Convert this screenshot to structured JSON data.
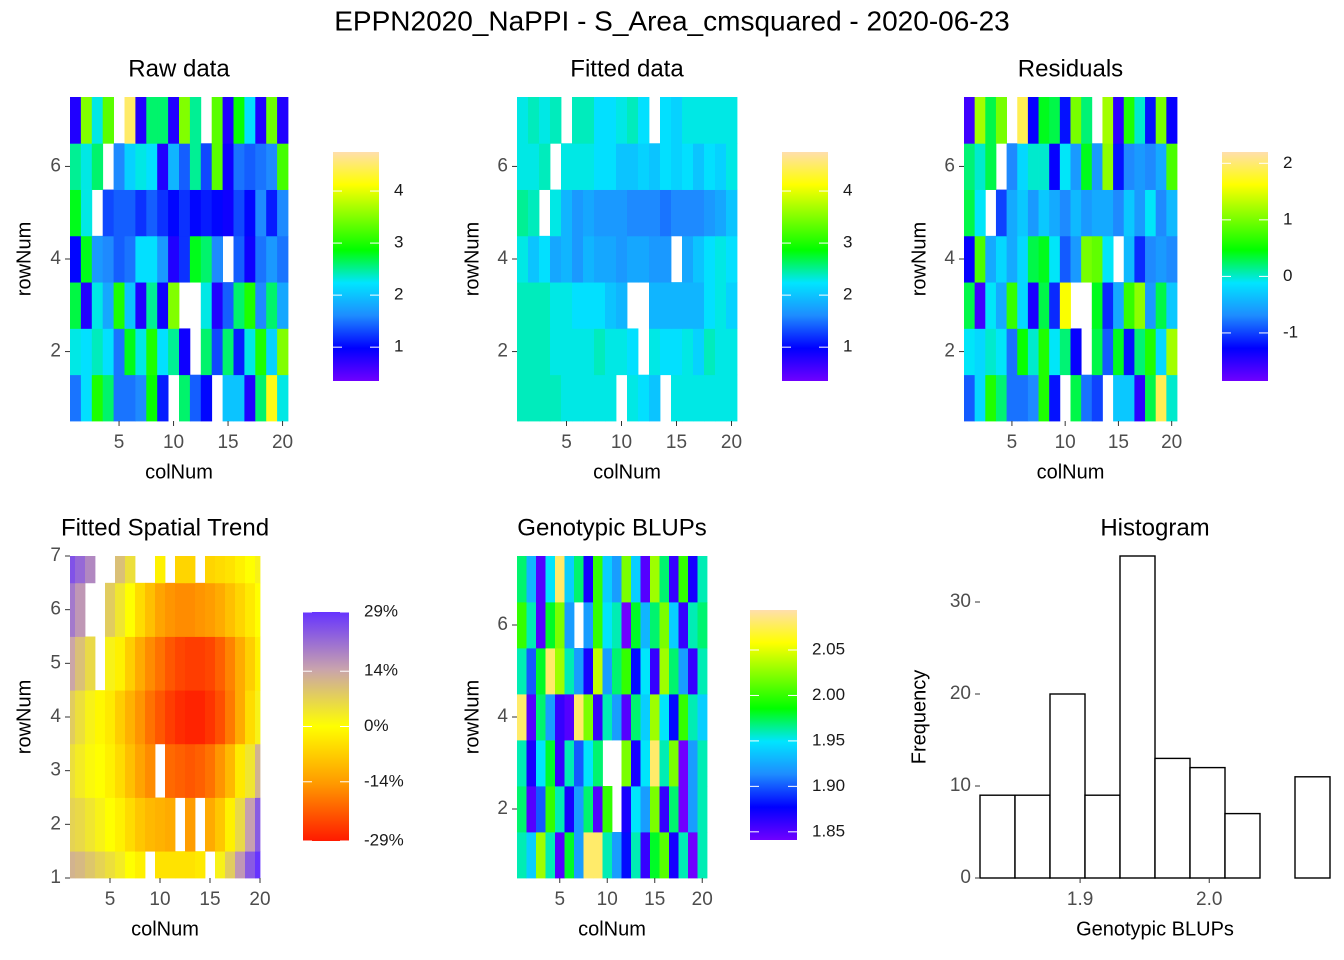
{
  "title": "EPPN2020_NaPPI - S_Area_cmsquared - 2020-06-23",
  "chart_data": [
    {
      "type": "heatmap",
      "title": "Raw data",
      "x_label": "colNum",
      "y_label": "rowNum",
      "x": [
        1,
        2,
        3,
        4,
        5,
        6,
        7,
        8,
        9,
        10,
        11,
        12,
        13,
        14,
        15,
        16,
        17,
        18,
        19,
        20
      ],
      "y": [
        1,
        2,
        3,
        4,
        5,
        6,
        7
      ],
      "xlim": [
        0.5,
        20.5
      ],
      "xticks": [
        5,
        10,
        15,
        20
      ],
      "ylim": [
        0.5,
        7.5
      ],
      "yticks": [
        2,
        4,
        6
      ],
      "z": [
        [
          1.5,
          2.2,
          3.0,
          2.6,
          1.5,
          1.5,
          1.6,
          2.9,
          1.1,
          null,
          2.6,
          1.4,
          1.0,
          null,
          2.0,
          2.0,
          0.8,
          2.6,
          4.2,
          2.3
        ],
        [
          2.3,
          2.2,
          2.4,
          2.2,
          1.5,
          2.8,
          2.3,
          3.0,
          2.2,
          2.5,
          0.9,
          null,
          2.6,
          1.3,
          2.6,
          1.1,
          2.3,
          3.0,
          2.1,
          3.5
        ],
        [
          2.7,
          0.8,
          2.3,
          1.8,
          3.0,
          2.0,
          0.8,
          2.5,
          0.9,
          3.5,
          null,
          null,
          2.3,
          0.8,
          1.4,
          2.6,
          3.0,
          1.6,
          2.6,
          1.8
        ],
        [
          1.0,
          2.8,
          1.7,
          1.6,
          1.4,
          1.5,
          2.2,
          2.2,
          1.7,
          0.8,
          1.2,
          2.8,
          2.6,
          1.6,
          null,
          1.4,
          0.9,
          1.5,
          1.7,
          1.5
        ],
        [
          2.8,
          2.3,
          null,
          1.3,
          1.4,
          1.4,
          1.2,
          1.4,
          1.2,
          1.0,
          1.2,
          1.0,
          1.1,
          1.0,
          0.9,
          1.3,
          1.0,
          1.6,
          1.1,
          1.6
        ],
        [
          2.5,
          2.3,
          2.6,
          null,
          1.6,
          2.1,
          2.3,
          2.2,
          0.8,
          1.9,
          1.4,
          2.5,
          1.3,
          3.3,
          0.9,
          1.5,
          1.4,
          1.5,
          1.6,
          3.2
        ],
        [
          0.8,
          3.5,
          2.3,
          3.3,
          null,
          4.5,
          0.8,
          2.6,
          2.6,
          0.8,
          3.5,
          2.5,
          null,
          3.3,
          0.8,
          2.9,
          2.2,
          0.8,
          3.4,
          0.8
        ]
      ],
      "zlim": [
        0.35,
        4.75
      ],
      "zticks": [
        1,
        2,
        3,
        4
      ],
      "colors": [
        "#7000ff",
        "#0000ff",
        "#1e8cff",
        "#00e5ff",
        "#00ff00",
        "#80ff00",
        "#ffff00",
        "#ffdead"
      ]
    },
    {
      "type": "heatmap",
      "title": "Fitted data",
      "x_label": "colNum",
      "y_label": "rowNum",
      "x": [
        1,
        2,
        3,
        4,
        5,
        6,
        7,
        8,
        9,
        10,
        11,
        12,
        13,
        14,
        15,
        16,
        17,
        18,
        19,
        20
      ],
      "y": [
        1,
        2,
        3,
        4,
        5,
        6,
        7
      ],
      "xlim": [
        0.5,
        20.5
      ],
      "xticks": [
        5,
        10,
        15,
        20
      ],
      "ylim": [
        0.5,
        7.5
      ],
      "yticks": [
        2,
        4,
        6
      ],
      "z": [
        [
          2.4,
          2.4,
          2.4,
          2.4,
          2.3,
          2.3,
          2.3,
          2.3,
          2.3,
          null,
          2.3,
          2.2,
          2.0,
          null,
          2.3,
          2.3,
          2.3,
          2.3,
          2.3,
          2.3
        ],
        [
          2.4,
          2.4,
          2.4,
          2.3,
          2.3,
          2.3,
          2.3,
          2.4,
          2.3,
          2.3,
          2.2,
          null,
          2.3,
          2.2,
          2.2,
          2.3,
          2.1,
          2.4,
          2.3,
          2.3
        ],
        [
          2.4,
          2.4,
          2.4,
          2.3,
          2.3,
          2.2,
          2.2,
          2.2,
          2.0,
          1.9,
          null,
          null,
          1.9,
          1.9,
          1.9,
          1.9,
          1.9,
          2.2,
          2.3,
          2.1
        ],
        [
          2.3,
          2.0,
          2.2,
          1.8,
          1.9,
          1.7,
          1.9,
          1.8,
          1.8,
          1.7,
          1.8,
          1.8,
          1.7,
          1.7,
          null,
          1.8,
          2.0,
          2.2,
          2.3,
          2.2
        ],
        [
          2.5,
          2.4,
          null,
          2.3,
          1.9,
          1.7,
          1.8,
          1.7,
          1.7,
          1.7,
          1.6,
          1.6,
          1.6,
          1.5,
          1.6,
          1.6,
          1.6,
          1.7,
          1.8,
          2.0
        ],
        [
          2.3,
          2.3,
          2.4,
          null,
          2.3,
          2.3,
          2.3,
          2.2,
          2.2,
          2.0,
          2.0,
          2.1,
          2.0,
          2.2,
          2.1,
          2.2,
          2.0,
          2.2,
          2.1,
          2.3
        ],
        [
          2.3,
          2.4,
          2.3,
          2.4,
          null,
          2.4,
          2.4,
          2.2,
          2.2,
          2.3,
          2.4,
          2.2,
          null,
          2.2,
          2.1,
          2.3,
          2.3,
          2.3,
          2.3,
          2.3
        ]
      ],
      "zlim": [
        0.35,
        4.75
      ],
      "zticks": [
        1,
        2,
        3,
        4
      ],
      "colors": [
        "#7000ff",
        "#0000ff",
        "#1e8cff",
        "#00e5ff",
        "#00ff00",
        "#80ff00",
        "#ffff00",
        "#ffdead"
      ]
    },
    {
      "type": "heatmap",
      "title": "Residuals",
      "x_label": "colNum",
      "y_label": "rowNum",
      "x": [
        1,
        2,
        3,
        4,
        5,
        6,
        7,
        8,
        9,
        10,
        11,
        12,
        13,
        14,
        15,
        16,
        17,
        18,
        19,
        20
      ],
      "y": [
        1,
        2,
        3,
        4,
        5,
        6,
        7
      ],
      "xlim": [
        0.5,
        20.5
      ],
      "xticks": [
        5,
        10,
        15,
        20
      ],
      "ylim": [
        0.5,
        7.5
      ],
      "yticks": [
        2,
        4,
        6
      ],
      "z": [
        [
          -0.9,
          -0.2,
          0.6,
          0.2,
          -0.8,
          -0.8,
          -0.7,
          0.6,
          -1.2,
          null,
          0.3,
          -0.8,
          -1.0,
          null,
          -0.3,
          -0.3,
          -1.5,
          0.3,
          1.9,
          0
        ],
        [
          -0.1,
          -0.2,
          0,
          -0.1,
          -0.8,
          0.5,
          0,
          0.6,
          -0.1,
          0.2,
          -1.3,
          null,
          0.3,
          -0.9,
          0.4,
          -1.2,
          0.2,
          0.6,
          -0.2,
          1.2
        ],
        [
          0.3,
          -1.6,
          -0.1,
          -0.5,
          0.7,
          -0.2,
          -1.4,
          0.3,
          -1.1,
          1.6,
          null,
          null,
          0.4,
          -1.1,
          -0.5,
          0.7,
          1.1,
          -0.6,
          0.3,
          -0.3
        ],
        [
          -1.3,
          0.8,
          -0.5,
          -0.2,
          -0.5,
          -0.2,
          0.3,
          0.4,
          -0.1,
          -0.9,
          -0.6,
          1.0,
          0.9,
          -0.1,
          null,
          -0.4,
          -1.1,
          -0.7,
          -0.6,
          -0.7
        ],
        [
          0.3,
          -0.1,
          null,
          -1.0,
          -0.5,
          -0.3,
          -0.6,
          -0.3,
          -0.5,
          -0.7,
          -0.4,
          -0.6,
          -0.5,
          -0.5,
          -0.7,
          -0.3,
          -0.6,
          -0.1,
          -0.7,
          -0.4
        ],
        [
          0.2,
          0,
          0.3,
          null,
          -0.7,
          -0.2,
          0,
          0,
          -1.3,
          -0.1,
          -0.6,
          0.4,
          -0.6,
          1.1,
          -1.2,
          -0.7,
          -0.6,
          -0.7,
          -0.5,
          0.8
        ],
        [
          -1.6,
          1.2,
          0.3,
          1.0,
          null,
          1.9,
          -1.3,
          0.4,
          0.3,
          -1.2,
          1.0,
          0.2,
          null,
          1.2,
          -1.5,
          0.6,
          0,
          -1.2,
          1.0,
          -1.3
        ]
      ],
      "zlim": [
        -1.85,
        2.2
      ],
      "zticks": [
        -1,
        0,
        1,
        2
      ],
      "colors": [
        "#7000ff",
        "#0000ff",
        "#1e8cff",
        "#00e5ff",
        "#00ff00",
        "#80ff00",
        "#ffff00",
        "#ffdead"
      ]
    },
    {
      "type": "heatmap",
      "title": "Fitted Spatial Trend",
      "x_label": "colNum",
      "y_label": "rowNum",
      "x": [
        1,
        2,
        3,
        4,
        5,
        6,
        7,
        8,
        9,
        10,
        11,
        12,
        13,
        14,
        15,
        16,
        17,
        18,
        19,
        20
      ],
      "y": [
        1,
        2,
        3,
        4,
        5,
        6,
        7
      ],
      "xlim": [
        1,
        20
      ],
      "xticks": [
        5,
        10,
        15,
        20
      ],
      "ylim": [
        1,
        7
      ],
      "yticks": [
        1,
        2,
        3,
        4,
        5,
        6,
        7
      ],
      "z": [
        [
          12,
          11,
          9,
          7,
          5,
          3,
          0,
          -2,
          null,
          -4,
          -4,
          -4,
          -4,
          -3,
          null,
          2,
          8,
          16,
          24,
          29
        ],
        [
          7,
          6,
          4,
          2,
          0,
          -2,
          -5,
          -8,
          -10,
          -11,
          -12,
          null,
          -14,
          null,
          -12,
          -8,
          -2,
          6,
          15,
          24
        ],
        [
          5,
          3,
          1,
          0,
          -2,
          -5,
          -9,
          -13,
          -16,
          null,
          -20,
          -21,
          -22,
          -21,
          -19,
          -15,
          -10,
          -3,
          4,
          12
        ],
        [
          8,
          5,
          2,
          -1,
          -3,
          -7,
          -11,
          -15,
          -19,
          -22,
          -25,
          -27,
          -28,
          -28,
          -26,
          -23,
          -18,
          -12,
          -5,
          2
        ],
        [
          14,
          10,
          6,
          null,
          2,
          -2,
          -7,
          -12,
          -16,
          -19,
          -22,
          -24,
          -25,
          -25,
          -24,
          -21,
          -17,
          -12,
          -7,
          -2
        ],
        [
          20,
          16,
          null,
          null,
          8,
          4,
          0,
          -5,
          -9,
          -13,
          -15,
          -16,
          -16,
          -15,
          -14,
          -12,
          -9,
          -6,
          -3,
          0
        ],
        [
          25,
          22,
          18,
          null,
          null,
          10,
          5,
          null,
          null,
          -2,
          null,
          -6,
          -6,
          null,
          -6,
          -5,
          -4,
          -2,
          0,
          2
        ]
      ],
      "zlim": [
        -29,
        29
      ],
      "zticks": [
        {
          "value": -29,
          "label": "-29%"
        },
        {
          "value": -14,
          "label": "-14%"
        },
        {
          "value": 0,
          "label": "0%"
        },
        {
          "value": 14,
          "label": "14%"
        },
        {
          "value": 29,
          "label": "29%"
        }
      ],
      "colors": [
        "#ff1a00",
        "#ff9900",
        "#ffff00",
        "#c9a3ad",
        "#6633ff"
      ]
    },
    {
      "type": "heatmap",
      "title": "Genotypic BLUPs",
      "x_label": "colNum",
      "y_label": "rowNum",
      "x": [
        1,
        2,
        3,
        4,
        5,
        6,
        7,
        8,
        9,
        10,
        11,
        12,
        13,
        14,
        15,
        16,
        17,
        18,
        19,
        20
      ],
      "y": [
        1,
        2,
        3,
        4,
        5,
        6,
        7
      ],
      "xlim": [
        0.5,
        20.5
      ],
      "xticks": [
        5,
        10,
        15,
        20
      ],
      "ylim": [
        0.5,
        7.5
      ],
      "yticks": [
        2,
        4,
        6
      ],
      "z": [
        [
          1.96,
          1.94,
          2.03,
          1.96,
          1.85,
          1.98,
          1.92,
          2.08,
          2.08,
          1.96,
          1.92,
          1.88,
          1.96,
          1.86,
          1.98,
          2.01,
          1.87,
          1.96,
          1.84,
          1.96
        ],
        [
          1.97,
          1.85,
          1.9,
          2.0,
          1.96,
          1.87,
          1.92,
          1.97,
          1.85,
          2.0,
          null,
          1.87,
          1.95,
          1.92,
          2.02,
          1.86,
          1.97,
          1.84,
          1.92,
          1.96
        ],
        [
          1.96,
          1.87,
          1.95,
          1.98,
          1.86,
          1.96,
          1.9,
          1.95,
          1.97,
          null,
          null,
          2.02,
          1.87,
          1.95,
          2.08,
          1.96,
          2.02,
          1.84,
          1.92,
          1.96
        ],
        [
          2.08,
          1.85,
          1.97,
          1.92,
          1.86,
          1.85,
          2.08,
          2.02,
          1.86,
          1.96,
          1.92,
          1.85,
          1.97,
          1.94,
          2.03,
          1.95,
          1.88,
          2.0,
          1.96,
          1.94
        ],
        [
          1.96,
          1.9,
          1.98,
          2.08,
          2.03,
          1.96,
          1.92,
          1.87,
          2.04,
          1.92,
          1.97,
          2.0,
          1.88,
          1.95,
          1.86,
          2.03,
          1.97,
          1.92,
          1.86,
          1.96
        ],
        [
          2.0,
          1.96,
          1.85,
          1.98,
          2.02,
          1.92,
          null,
          1.92,
          2.0,
          1.95,
          1.96,
          1.84,
          1.98,
          1.93,
          1.97,
          2.02,
          1.94,
          1.86,
          1.96,
          1.97
        ],
        [
          1.97,
          1.93,
          1.85,
          1.95,
          2.08,
          1.94,
          1.97,
          1.87,
          2.0,
          1.94,
          1.92,
          2.02,
          1.94,
          1.85,
          2.03,
          1.97,
          1.86,
          2.0,
          1.87,
          1.96
        ]
      ],
      "zlim": [
        1.841,
        2.094
      ],
      "zticks": [
        1.85,
        {
          "value": 1.9,
          "label": "1.90"
        },
        1.95,
        {
          "value": 2,
          "label": "2.00"
        },
        2.05
      ],
      "colors": [
        "#7000ff",
        "#0000ff",
        "#1e8cff",
        "#00e5ff",
        "#00ff00",
        "#80ff00",
        "#ffff00",
        "#ffdead"
      ]
    },
    {
      "type": "histogram",
      "title": "Histogram",
      "x_label": "Genotypic BLUPs",
      "y_label": "Frequency",
      "bins": [
        1.8225,
        1.8496,
        1.8767,
        1.9038,
        1.9309,
        1.958,
        1.9851,
        2.0122,
        2.0393,
        2.0664,
        2.0935
      ],
      "values": [
        9,
        9,
        20,
        9,
        35,
        13,
        12,
        7,
        0,
        11
      ],
      "xlim": [
        1.8225,
        2.0935
      ],
      "xticks": [
        1.9,
        {
          "value": 2,
          "label": "2.0"
        }
      ],
      "ylim": [
        0,
        35
      ],
      "yticks": [
        0,
        10,
        20,
        30
      ],
      "color": "#ffffff"
    }
  ]
}
